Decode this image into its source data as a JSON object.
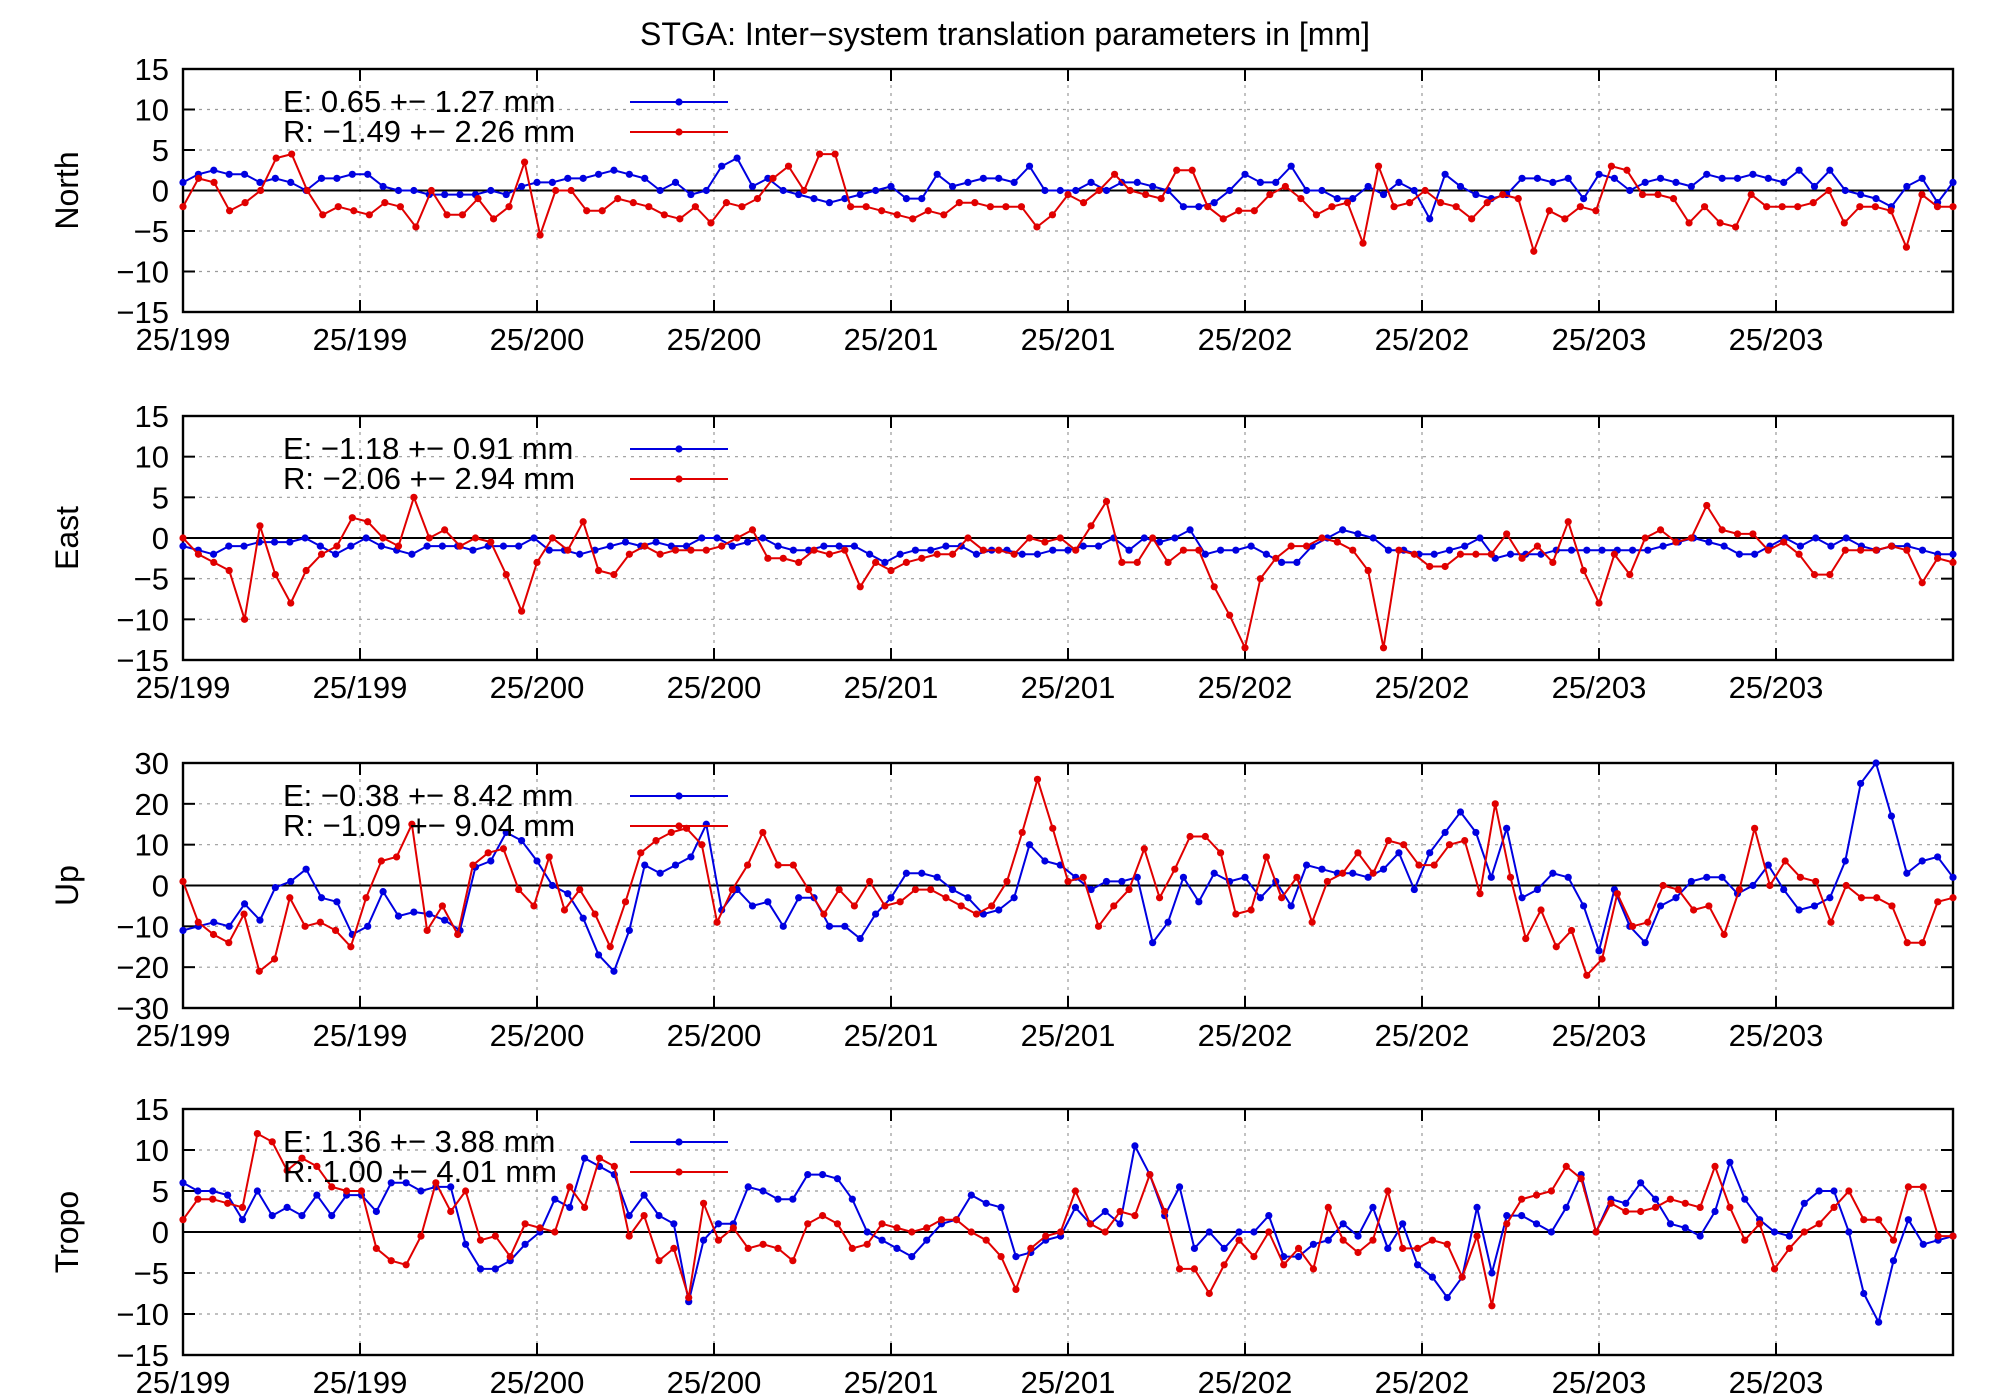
{
  "page": {
    "title": "STGA: Inter−system translation parameters in [mm]"
  },
  "colors": {
    "E": "#0000e0",
    "R": "#e00000"
  },
  "chart_data": [
    {
      "type": "line",
      "ylabel": "North",
      "ylim": [
        -15,
        15
      ],
      "yticks": [
        "15",
        "10",
        "5",
        "0",
        "−5",
        "−10",
        "−15"
      ],
      "ytick_values": [
        15,
        10,
        5,
        0,
        -5,
        -10,
        -15
      ],
      "xtick_labels": [
        "25/199",
        "25/199",
        "25/200",
        "25/200",
        "25/201",
        "25/201",
        "25/202",
        "25/202",
        "25/203",
        "25/203"
      ],
      "legend": [
        {
          "key": "E",
          "label": "E:   0.65 +− 1.27 mm"
        },
        {
          "key": "R",
          "label": "R:  −1.49 +− 2.26 mm"
        }
      ],
      "series": [
        {
          "key": "E",
          "values": [
            1,
            2,
            2.5,
            2,
            2,
            1,
            1.5,
            1,
            0,
            1.5,
            1.5,
            2,
            2,
            0.5,
            0,
            0,
            -0.5,
            -0.5,
            -0.5,
            -0.5,
            0,
            -0.5,
            0.5,
            1,
            1,
            1.5,
            1.5,
            2,
            2.5,
            2,
            1.5,
            0,
            1,
            -0.5,
            0,
            3,
            4,
            0.5,
            1.5,
            0,
            -0.5,
            -1,
            -1.5,
            -1,
            -0.5,
            0,
            0.5,
            -1,
            -1,
            2,
            0.5,
            1,
            1.5,
            1.5,
            1,
            3,
            0,
            0,
            0,
            1,
            0,
            1,
            1,
            0.5,
            0,
            -2,
            -2,
            -1.5,
            0,
            2,
            1,
            1,
            3,
            0,
            0,
            -1,
            -1,
            0.5,
            -0.5,
            1,
            0,
            -3.5,
            2,
            0.5,
            -0.5,
            -1,
            -0.5,
            1.5,
            1.5,
            1,
            1.5,
            -1,
            2,
            1.5,
            0,
            1,
            1.5,
            1,
            0.5,
            2,
            1.5,
            1.5,
            2,
            1.5,
            1,
            2.5,
            0.5,
            2.5,
            0,
            -0.5,
            -1,
            -2,
            0.5,
            1.5,
            -1.5,
            1
          ]
        },
        {
          "key": "R",
          "values": [
            -2,
            1.5,
            1,
            -2.5,
            -1.5,
            0,
            4,
            4.5,
            0,
            -3,
            -2,
            -2.5,
            -3,
            -1.5,
            -2,
            -4.5,
            0,
            -3,
            -3,
            -1,
            -3.5,
            -2,
            3.5,
            -5.5,
            0,
            0,
            -2.5,
            -2.5,
            -1,
            -1.5,
            -2,
            -3,
            -3.5,
            -2,
            -4,
            -1.5,
            -2,
            -1,
            1.5,
            3,
            0,
            4.5,
            4.5,
            -2,
            -2,
            -2.5,
            -3,
            -3.5,
            -2.5,
            -3,
            -1.5,
            -1.5,
            -2,
            -2,
            -2,
            -4.5,
            -3,
            -0.5,
            -1.5,
            0,
            2,
            0,
            -0.5,
            -1,
            2.5,
            2.5,
            -2,
            -3.5,
            -2.5,
            -2.5,
            -0.5,
            0.5,
            -1,
            -3,
            -2,
            -1.5,
            -6.5,
            3,
            -2,
            -1.5,
            0,
            -1.5,
            -2,
            -3.5,
            -1.5,
            -0.5,
            -1,
            -7.5,
            -2.5,
            -3.5,
            -2,
            -2.5,
            3,
            2.5,
            -0.5,
            -0.5,
            -1,
            -4,
            -2,
            -4,
            -4.5,
            -0.5,
            -2,
            -2,
            -2,
            -1.5,
            0,
            -4,
            -2,
            -2,
            -2.5,
            -7,
            -0.5,
            -2,
            -2
          ]
        }
      ]
    },
    {
      "type": "line",
      "ylabel": "East",
      "ylim": [
        -15,
        15
      ],
      "yticks": [
        "15",
        "10",
        "5",
        "0",
        "−5",
        "−10",
        "−15"
      ],
      "ytick_values": [
        15,
        10,
        5,
        0,
        -5,
        -10,
        -15
      ],
      "xtick_labels": [
        "25/199",
        "25/199",
        "25/200",
        "25/200",
        "25/201",
        "25/201",
        "25/202",
        "25/202",
        "25/203",
        "25/203"
      ],
      "legend": [
        {
          "key": "E",
          "label": "E:  −1.18 +− 0.91 mm"
        },
        {
          "key": "R",
          "label": "R:  −2.06 +− 2.94 mm"
        }
      ],
      "series": [
        {
          "key": "E",
          "values": [
            -1,
            -1.5,
            -2,
            -1,
            -1,
            -0.5,
            -0.5,
            -0.5,
            0,
            -1,
            -2,
            -1,
            0,
            -1,
            -1.5,
            -2,
            -1,
            -1,
            -1,
            -1.5,
            -1,
            -1,
            -1,
            0,
            -1.5,
            -1.5,
            -2,
            -1.5,
            -1,
            -0.5,
            -1,
            -0.5,
            -1,
            -1,
            0,
            0,
            -1,
            -0.5,
            0,
            -1,
            -1.5,
            -1.5,
            -1,
            -1,
            -1,
            -2,
            -3,
            -2,
            -1.5,
            -1.5,
            -1,
            -1,
            -2,
            -1.5,
            -1.5,
            -2,
            -2,
            -1.5,
            -1.5,
            -1,
            -1,
            0,
            -1.5,
            0,
            -0.5,
            0,
            1,
            -2,
            -1.5,
            -1.5,
            -1,
            -2,
            -3,
            -3,
            -1,
            0,
            1,
            0.5,
            0,
            -1.5,
            -1.5,
            -2,
            -2,
            -1.5,
            -1,
            0,
            -2.5,
            -2,
            -2,
            -2,
            -1.5,
            -1.5,
            -1.5,
            -1.5,
            -1.5,
            -1.5,
            -1.5,
            -1,
            -0.5,
            0,
            -0.5,
            -1,
            -2,
            -2,
            -1,
            0,
            -1,
            0,
            -1,
            0,
            -1,
            -1.5,
            -1,
            -1,
            -1.5,
            -2,
            -2
          ]
        },
        {
          "key": "R",
          "values": [
            0,
            -2,
            -3,
            -4,
            -10,
            1.5,
            -4.5,
            -8,
            -4,
            -2,
            -1,
            2.5,
            2,
            0,
            -1,
            5,
            0,
            1,
            -1,
            0,
            -0.5,
            -4.5,
            -9,
            -3,
            0,
            -1.5,
            2,
            -4,
            -4.5,
            -2,
            -1,
            -2,
            -1.5,
            -1.5,
            -1.5,
            -1,
            0,
            1,
            -2.5,
            -2.5,
            -3,
            -1.5,
            -2,
            -1.5,
            -6,
            -3,
            -4,
            -3,
            -2.5,
            -2,
            -2,
            0,
            -1.5,
            -1.5,
            -2,
            0,
            -0.5,
            0,
            -1.5,
            1.5,
            4.5,
            -3,
            -3,
            0,
            -3,
            -1.5,
            -1.5,
            -6,
            -9.5,
            -13.5,
            -5,
            -2.5,
            -1,
            -1,
            0,
            -0.5,
            -1.5,
            -4,
            -13.5,
            -1.5,
            -2,
            -3.5,
            -3.5,
            -2,
            -2,
            -2,
            0.5,
            -2.5,
            -1,
            -3,
            2,
            -4,
            -8,
            -2,
            -4.5,
            0,
            1,
            -0.5,
            0,
            4,
            1,
            0.5,
            0.5,
            -1.5,
            -0.5,
            -2,
            -4.5,
            -4.5,
            -1.5,
            -1.5,
            -1.5,
            -1,
            -1.5,
            -5.5,
            -2.5,
            -3
          ]
        }
      ]
    },
    {
      "type": "line",
      "ylabel": "Up",
      "ylim": [
        -30,
        30
      ],
      "yticks": [
        "30",
        "20",
        "10",
        "0",
        "−10",
        "−20",
        "−30"
      ],
      "ytick_values": [
        30,
        20,
        10,
        0,
        -10,
        -20,
        -30
      ],
      "xtick_labels": [
        "25/199",
        "25/199",
        "25/200",
        "25/200",
        "25/201",
        "25/201",
        "25/202",
        "25/202",
        "25/203",
        "25/203"
      ],
      "legend": [
        {
          "key": "E",
          "label": "E:  −0.38 +− 8.42 mm"
        },
        {
          "key": "R",
          "label": "R:  −1.09 +− 9.04 mm"
        }
      ],
      "series": [
        {
          "key": "E",
          "values": [
            -11,
            -10,
            -9,
            -10,
            -4.5,
            -8.5,
            -0.5,
            1,
            4,
            -3,
            -4,
            -12,
            -10,
            -1.5,
            -7.5,
            -6.5,
            -7,
            -8.5,
            -11,
            4.5,
            6,
            13,
            11,
            6,
            0,
            -2,
            -8,
            -17,
            -21,
            -11,
            5,
            3,
            5,
            7,
            15,
            -6,
            -1,
            -5,
            -4,
            -10,
            -3,
            -3,
            -10,
            -10,
            -13,
            -7,
            -3,
            3,
            3,
            2,
            -1,
            -3,
            -7,
            -6,
            -3,
            10,
            6,
            5,
            2,
            -1,
            1,
            1,
            2,
            -14,
            -9,
            2,
            -4,
            3,
            1,
            2,
            -3,
            1,
            -5,
            5,
            4,
            3,
            3,
            2,
            4,
            8,
            -1,
            8,
            13,
            18,
            13,
            2,
            14,
            -3,
            -1,
            3,
            2,
            -5,
            -16,
            -1,
            -10,
            -14,
            -5,
            -3,
            1,
            2,
            2,
            -2,
            0,
            5,
            -1,
            -6,
            -5,
            -3,
            6,
            25,
            30,
            17,
            3,
            6,
            7,
            2
          ]
        },
        {
          "key": "R",
          "values": [
            1,
            -9,
            -12,
            -14,
            -7,
            -21,
            -18,
            -3,
            -10,
            -9,
            -11,
            -15,
            -3,
            6,
            7,
            15,
            -11,
            -5,
            -12,
            5,
            8,
            9,
            -1,
            -5,
            7,
            -6,
            -1,
            -7,
            -15,
            -4,
            8,
            11,
            13,
            14,
            10,
            -9,
            -1,
            5,
            13,
            5,
            5,
            -1,
            -7,
            -1,
            -5,
            1,
            -5,
            -4,
            -1,
            -1,
            -3,
            -5,
            -7,
            -5,
            1,
            13,
            26,
            14,
            1,
            2,
            -10,
            -5,
            -1,
            9,
            -3,
            4,
            12,
            12,
            8,
            -7,
            -6,
            7,
            -3,
            2,
            -9,
            1,
            3,
            8,
            3,
            11,
            10,
            5,
            5,
            10,
            11,
            -2,
            20,
            2,
            -13,
            -6,
            -15,
            -11,
            -22,
            -18,
            -2,
            -10,
            -9,
            0,
            -1,
            -6,
            -5,
            -12,
            -1,
            14,
            0,
            6,
            2,
            1,
            -9,
            0,
            -3,
            -3,
            -5,
            -14,
            -14,
            -4,
            -3
          ]
        }
      ]
    },
    {
      "type": "line",
      "ylabel": "Tropo",
      "ylim": [
        -15,
        15
      ],
      "yticks": [
        "15",
        "10",
        "5",
        "0",
        "−5",
        "−10",
        "−15"
      ],
      "ytick_values": [
        15,
        10,
        5,
        0,
        -5,
        -10,
        -15
      ],
      "xtick_labels": [
        "25/199",
        "25/199",
        "25/200",
        "25/200",
        "25/201",
        "25/201",
        "25/202",
        "25/202",
        "25/203",
        "25/203"
      ],
      "legend": [
        {
          "key": "E",
          "label": "E:   1.36 +− 3.88 mm"
        },
        {
          "key": "R",
          "label": "R:   1.00 +− 4.01 mm"
        }
      ],
      "series": [
        {
          "key": "E",
          "values": [
            6,
            5,
            5,
            4.5,
            1.5,
            5,
            2,
            3,
            2,
            4.5,
            2,
            4.5,
            4.5,
            2.5,
            6,
            6,
            5,
            5.5,
            5.5,
            -1.5,
            -4.5,
            -4.5,
            -3.5,
            -1.5,
            0,
            4,
            3,
            9,
            8,
            7,
            2,
            4.5,
            2,
            1,
            -8.5,
            -1,
            1,
            1,
            5.5,
            5,
            4,
            4,
            7,
            7,
            6.5,
            4,
            0,
            -1,
            -2,
            -3,
            -1,
            1,
            1.5,
            4.5,
            3.5,
            3,
            -3,
            -2.5,
            -1,
            -0.5,
            3,
            1,
            2.5,
            1,
            10.5,
            7,
            2,
            5.5,
            -2,
            0,
            -2,
            0,
            0,
            2,
            -3,
            -3,
            -1.5,
            -1,
            1,
            -0.5,
            3,
            -2,
            1,
            -4,
            -5.5,
            -8,
            -5.5,
            3,
            -5,
            2,
            2,
            1,
            0,
            3,
            7,
            0,
            4,
            3.5,
            6,
            4,
            1,
            0.5,
            -0.5,
            2.5,
            8.5,
            4,
            1.5,
            0,
            -0.5,
            3.5,
            5,
            5,
            0,
            -7.5,
            -11,
            -3.5,
            1.5,
            -1.5,
            -1,
            -0.5
          ]
        },
        {
          "key": "R",
          "values": [
            1.5,
            4,
            4,
            3.5,
            3,
            12,
            11,
            7.5,
            9,
            8,
            5.5,
            5,
            5,
            -2,
            -3.5,
            -4,
            -0.5,
            6,
            2.5,
            5,
            -1,
            -0.5,
            -3,
            1,
            0.5,
            0,
            5.5,
            3,
            9,
            8,
            -0.5,
            2,
            -3.5,
            -2,
            -8,
            3.5,
            -1,
            0.5,
            -2,
            -1.5,
            -2,
            -3.5,
            1,
            2,
            1,
            -2,
            -1.5,
            1,
            0.5,
            0,
            0.5,
            1.5,
            1.5,
            0,
            -1,
            -3,
            -7,
            -2,
            -0.5,
            0,
            5,
            1,
            0,
            2.5,
            2,
            7,
            2.5,
            -4.5,
            -4.5,
            -7.5,
            -4,
            -1,
            -3,
            0,
            -4,
            -2,
            -4.5,
            3,
            -1,
            -2.5,
            -1,
            5,
            -2,
            -2,
            -1,
            -1.5,
            -5.5,
            -0.5,
            -9,
            1,
            4,
            4.5,
            5,
            8,
            6.5,
            0,
            3.5,
            2.5,
            2.5,
            3,
            4,
            3.5,
            3,
            8,
            3,
            -1,
            1,
            -4.5,
            -2,
            0,
            1,
            3,
            5,
            1.5,
            1.5,
            -1,
            5.5,
            5.5,
            -0.5,
            -0.5
          ]
        }
      ]
    }
  ]
}
